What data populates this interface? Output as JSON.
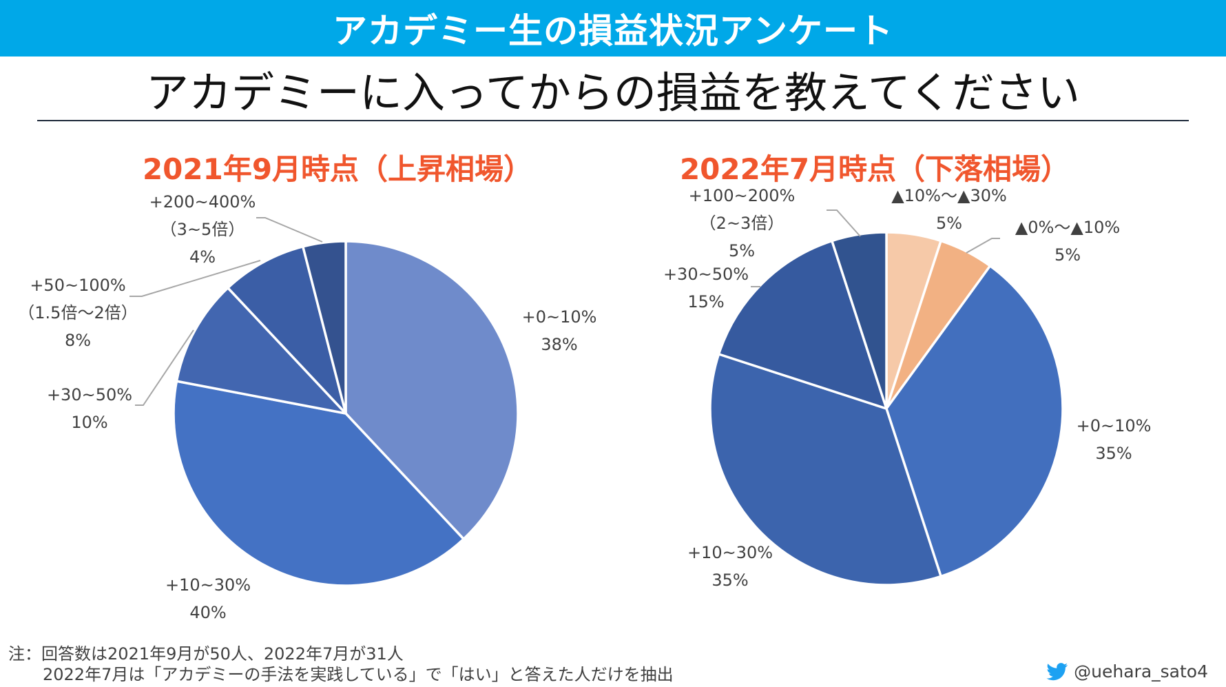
{
  "banner": {
    "title": "アカデミー生の損益状況アンケート"
  },
  "question": "アカデミーに入ってからの損益を教えてください",
  "chart_data": [
    {
      "type": "pie",
      "title": "2021年9月時点（上昇相場）",
      "start_angle_deg": 0,
      "direction": "clockwise",
      "slices": [
        {
          "label": "+0~10%",
          "value": 38,
          "display": "38%",
          "color": "#6f8bcb"
        },
        {
          "label": "+10~30%",
          "value": 40,
          "display": "40%",
          "color": "#4472c4"
        },
        {
          "label": "+30~50%",
          "value": 10,
          "display": "10%",
          "color": "#4266b0"
        },
        {
          "label": "+50~100%",
          "sublabel": "（1.5倍～2倍）",
          "value": 8,
          "display": "8%",
          "color": "#3b5ea6"
        },
        {
          "label": "+200~400%",
          "sublabel": "（3~5倍）",
          "value": 4,
          "display": "4%",
          "color": "#34528f"
        }
      ]
    },
    {
      "type": "pie",
      "title": "2022年7月時点（下落相場）",
      "start_angle_deg": 0,
      "direction": "clockwise",
      "slices": [
        {
          "label": "▲10%～▲30%",
          "value": 5,
          "display": "5%",
          "color": "#f6c9a8"
        },
        {
          "label": "▲0%～▲10%",
          "value": 5,
          "display": "5%",
          "color": "#f2b183"
        },
        {
          "label": "+0~10%",
          "value": 35,
          "display": "35%",
          "color": "#426fbe"
        },
        {
          "label": "+10~30%",
          "value": 35,
          "display": "35%",
          "color": "#3c64ad"
        },
        {
          "label": "+30~50%",
          "value": 15,
          "display": "15%",
          "color": "#365a9f"
        },
        {
          "label": "+100~200%",
          "sublabel": "（2~3倍）",
          "value": 5,
          "display": "5%",
          "color": "#31538f"
        }
      ]
    }
  ],
  "colors": {
    "banner": "#00a8e8",
    "chart_title": "#f0562d",
    "twitter": "#1da1f2"
  },
  "footnote": {
    "line1": "注：回答数は2021年9月が50人、2022年7月が31人",
    "line2": "2022年7月は「アカデミーの手法を実践している」で「はい」と答えた人だけを抽出"
  },
  "credit": {
    "icon": "twitter-bird-icon",
    "handle": "@uehara_sato4"
  }
}
